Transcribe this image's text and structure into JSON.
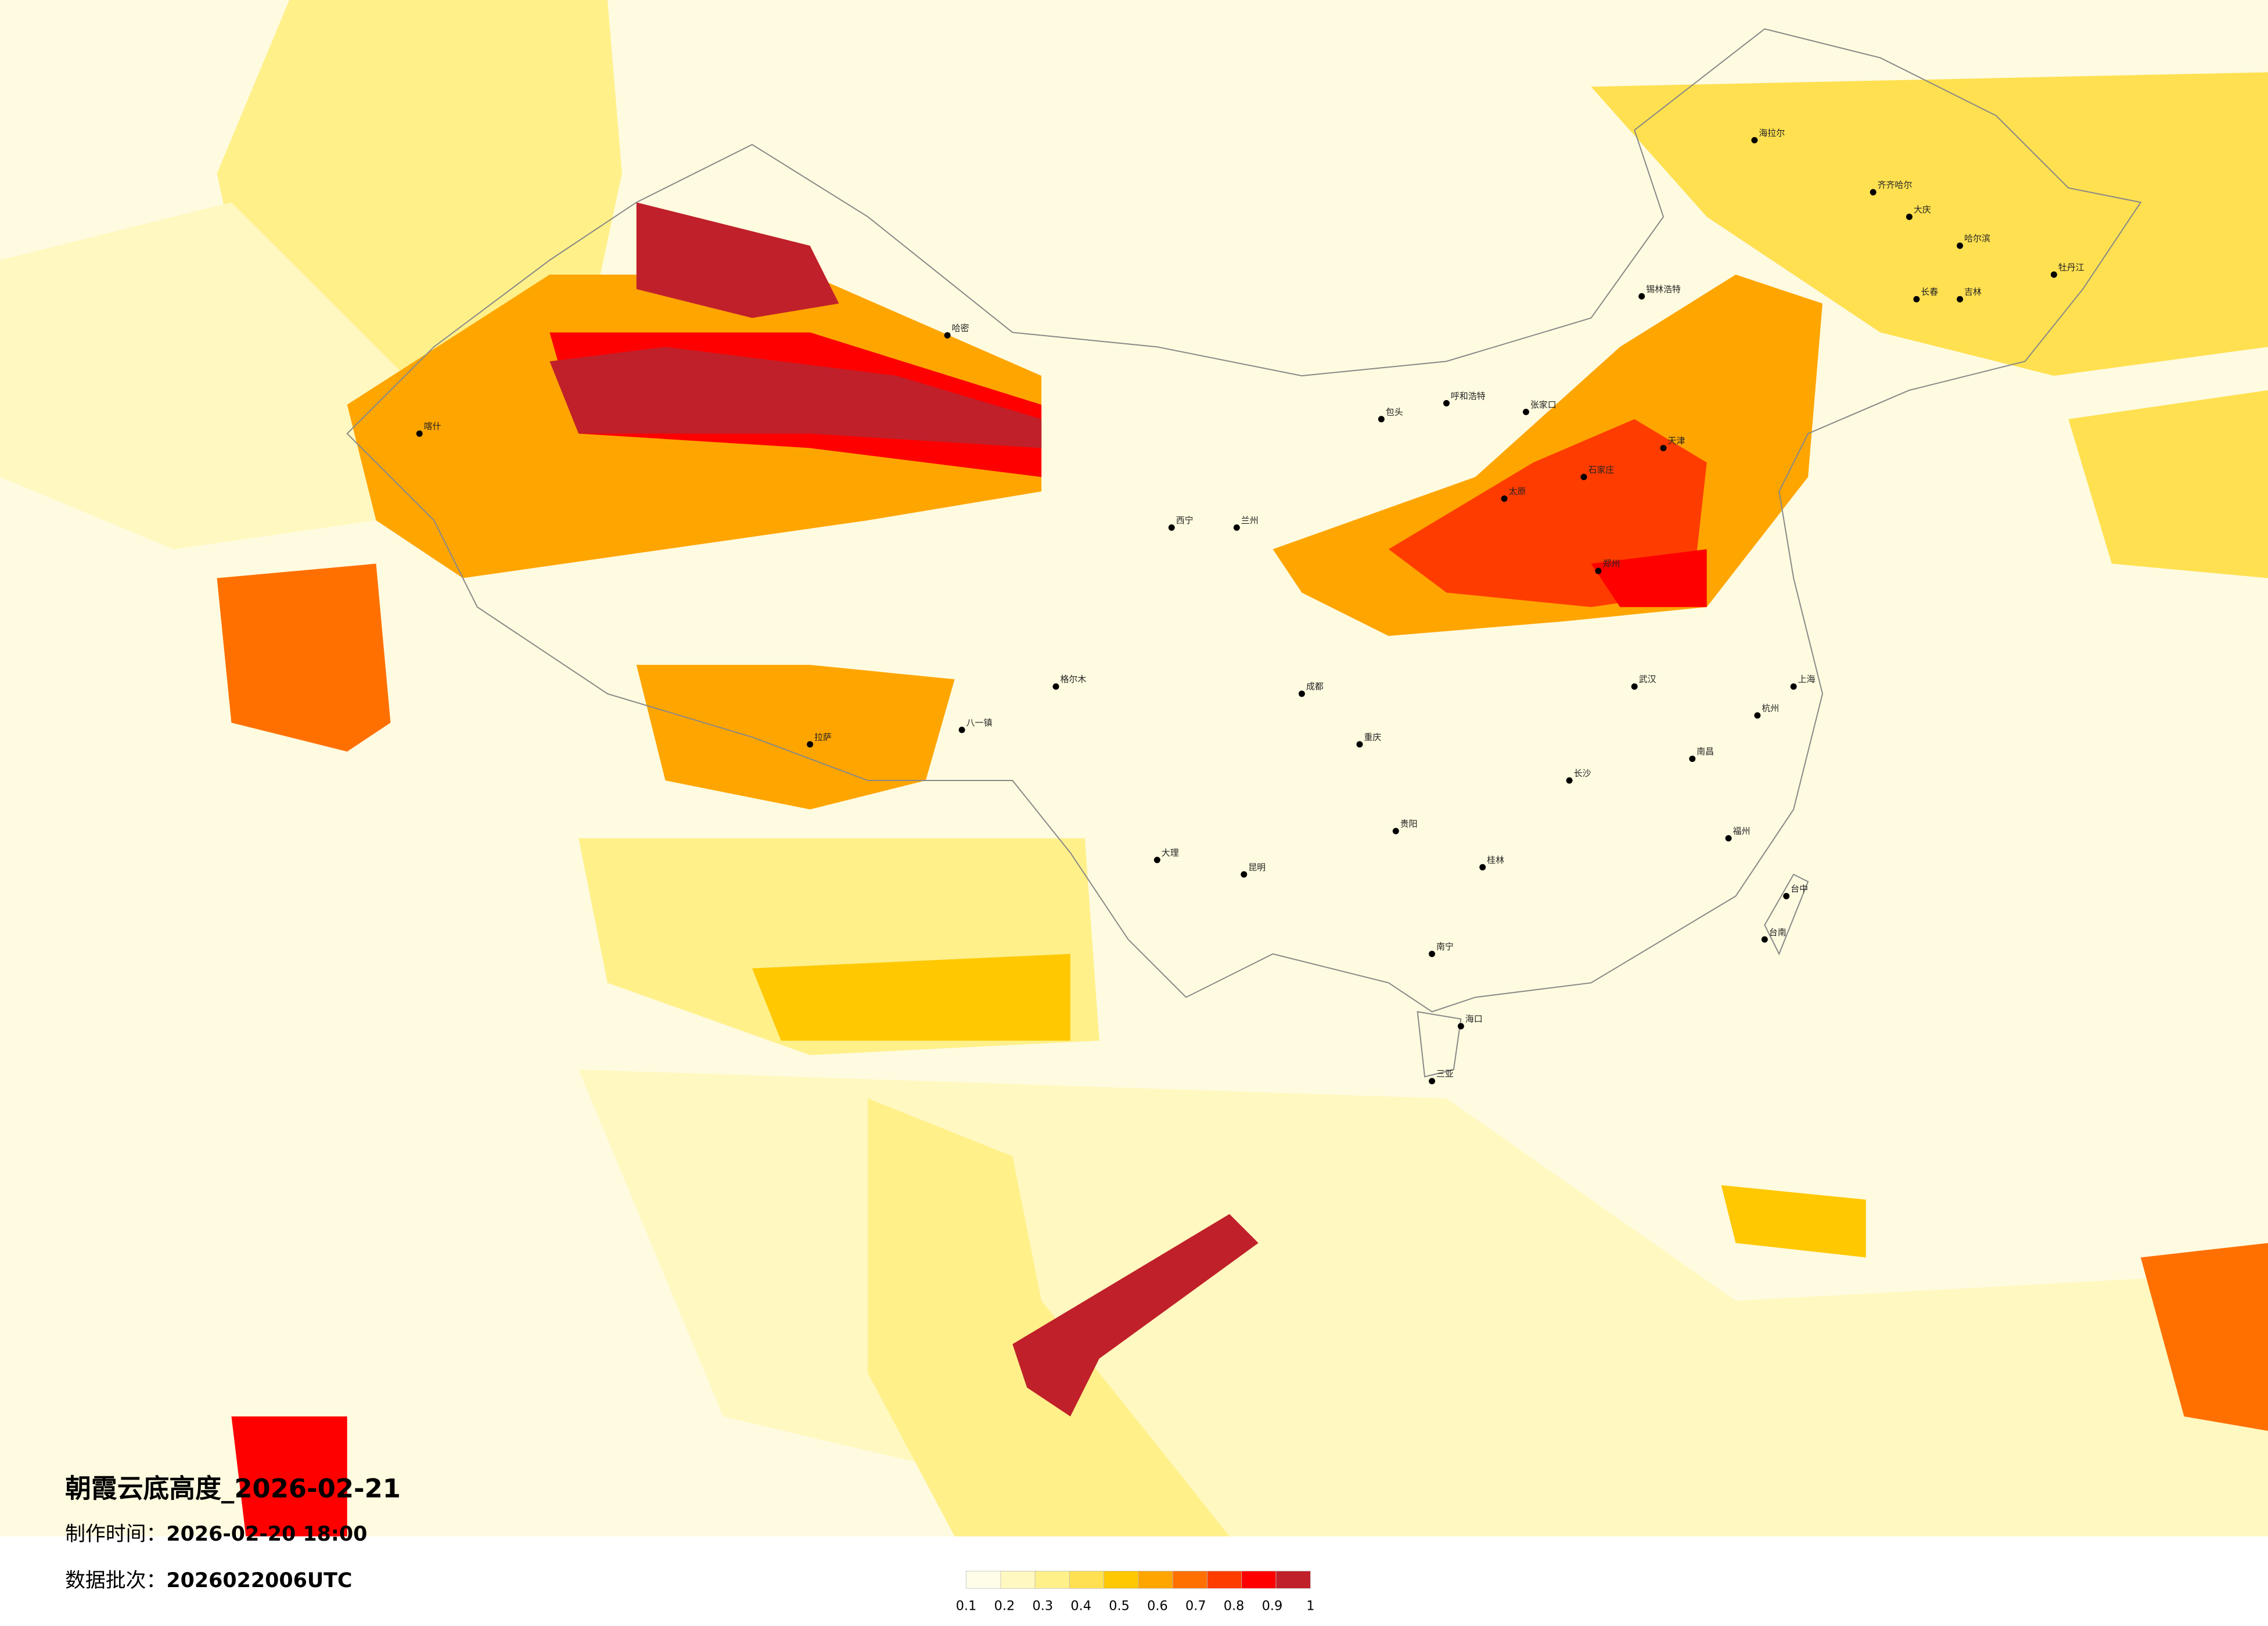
{
  "title": "朝霞云底高度_2026-02-21",
  "made_label": "制作时间：",
  "made_time": "2026-02-20 18:00",
  "batch_label": "数据批次：",
  "batch": "2026022006UTC",
  "legend": {
    "colors": [
      "#fffde8",
      "#fff8c0",
      "#fff08a",
      "#ffe050",
      "#ffc800",
      "#ffa500",
      "#ff7000",
      "#ff3c00",
      "#ff0000",
      "#c0202a"
    ],
    "ticks": [
      0.1,
      0.2,
      0.3,
      0.4,
      0.5,
      0.6,
      0.7,
      0.8,
      0.9,
      1
    ]
  },
  "cities": [
    "海拉尔",
    "齐齐哈尔",
    "大庆",
    "哈尔滨",
    "牡丹江",
    "长春",
    "吉林",
    "锡林浩特",
    "呼和浩特",
    "包头",
    "张家口",
    "天津",
    "石家庄",
    "太原",
    "郑州",
    "武汉",
    "长沙",
    "南昌",
    "南宁",
    "桂林",
    "贵阳",
    "昆明",
    "大理",
    "成都",
    "重庆",
    "兰州",
    "西宁",
    "喀什",
    "哈密",
    "格尔木",
    "拉萨",
    "八一镇",
    "上海",
    "杭州",
    "福州",
    "台中",
    "台南",
    "海口",
    "三亚"
  ]
}
